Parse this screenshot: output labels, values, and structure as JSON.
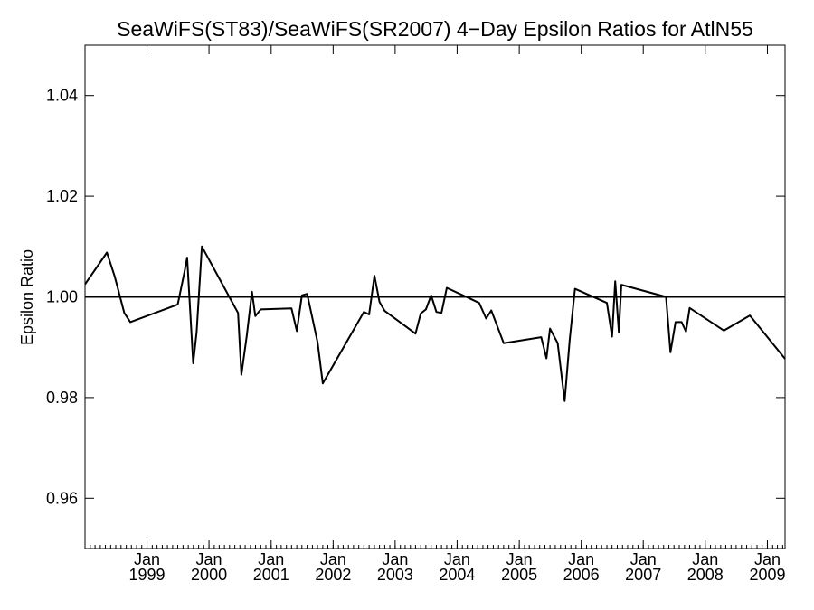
{
  "chart_data": {
    "type": "line",
    "title": "SeaWiFS(ST83)/SeaWiFS(SR2007) 4−Day Epsilon Ratios for AtlN55",
    "xlabel": "",
    "ylabel": "Epsilon Ratio",
    "xlim": [
      "1998-01-01",
      "2009-04-15"
    ],
    "ylim": [
      0.95,
      1.05
    ],
    "y_ticks": [
      0.96,
      0.98,
      1.0,
      1.02,
      1.04
    ],
    "y_tick_labels": [
      "0.96",
      "0.98",
      "1.00",
      "1.02",
      "1.04"
    ],
    "x_ticks": [
      {
        "top": "Jan",
        "bottom": "1999",
        "date": "1999-01-01"
      },
      {
        "top": "Jan",
        "bottom": "2000",
        "date": "2000-01-01"
      },
      {
        "top": "Jan",
        "bottom": "2001",
        "date": "2001-01-01"
      },
      {
        "top": "Jan",
        "bottom": "2002",
        "date": "2002-01-01"
      },
      {
        "top": "Jan",
        "bottom": "2003",
        "date": "2003-01-01"
      },
      {
        "top": "Jan",
        "bottom": "2004",
        "date": "2004-01-01"
      },
      {
        "top": "Jan",
        "bottom": "2005",
        "date": "2005-01-01"
      },
      {
        "top": "Jan",
        "bottom": "2006",
        "date": "2006-01-01"
      },
      {
        "top": "Jan",
        "bottom": "2007",
        "date": "2007-01-01"
      },
      {
        "top": "Jan",
        "bottom": "2008",
        "date": "2008-01-01"
      },
      {
        "top": "Jan",
        "bottom": "2009",
        "date": "2009-01-01"
      }
    ],
    "reference_line": 1.0,
    "grid": false,
    "series": [
      {
        "x": [
          "1998-01-01",
          "1998-05-10",
          "1998-06-25",
          "1998-08-20",
          "1998-09-25",
          "1999-07-01",
          "1999-08-10",
          "1999-08-25",
          "1999-09-30",
          "1999-10-20",
          "1999-11-20",
          "2000-06-20",
          "2000-07-10",
          "2000-08-10",
          "2000-09-10",
          "2000-09-30",
          "2000-11-01",
          "2001-05-01",
          "2001-06-01",
          "2001-07-01",
          "2001-08-01",
          "2001-10-01",
          "2001-11-01",
          "2002-07-01",
          "2002-08-01",
          "2002-09-01",
          "2002-10-01",
          "2002-11-01",
          "2003-05-01",
          "2003-06-01",
          "2003-07-01",
          "2003-08-01",
          "2003-09-01",
          "2003-10-01",
          "2003-11-01",
          "2004-05-10",
          "2004-06-20",
          "2004-07-20",
          "2004-10-01",
          "2005-05-10",
          "2005-06-10",
          "2005-07-01",
          "2005-08-15",
          "2005-09-25",
          "2005-10-25",
          "2005-11-25",
          "2006-06-01",
          "2006-07-01",
          "2006-07-20",
          "2006-08-10",
          "2006-08-25",
          "2007-05-15",
          "2007-06-10",
          "2007-07-10",
          "2007-08-15",
          "2007-09-10",
          "2007-10-01",
          "2008-04-20",
          "2008-09-20",
          "2009-04-15"
        ],
        "y": [
          1.0025,
          1.0088,
          1.004,
          0.9968,
          0.995,
          0.9985,
          1.005,
          1.0078,
          0.9868,
          0.993,
          1.01,
          0.9968,
          0.9845,
          0.9922,
          1.001,
          0.9962,
          0.9975,
          0.9977,
          0.9932,
          1.0003,
          1.0006,
          0.991,
          0.9828,
          0.997,
          0.9965,
          1.0042,
          0.999,
          0.9972,
          0.9927,
          0.9967,
          0.9975,
          1.0003,
          0.997,
          0.9968,
          1.0018,
          0.9988,
          0.9957,
          0.9973,
          0.9908,
          0.992,
          0.9878,
          0.9937,
          0.9908,
          0.9793,
          0.9915,
          1.0016,
          0.9988,
          0.9921,
          1.0031,
          0.993,
          1.0024,
          1.0,
          0.989,
          0.995,
          0.995,
          0.9931,
          0.9978,
          0.9933,
          0.9963,
          0.9877
        ]
      }
    ]
  }
}
